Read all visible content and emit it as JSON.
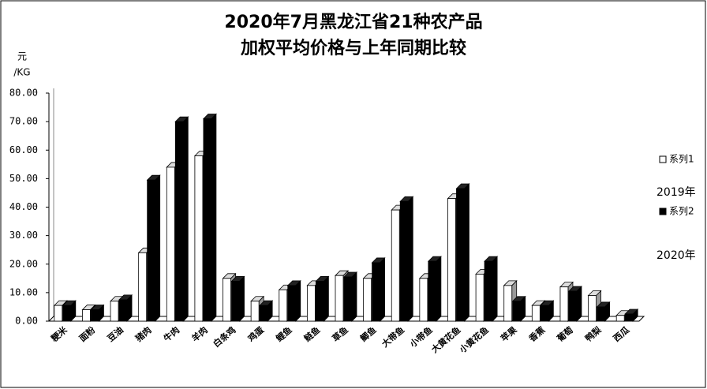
{
  "chart_data": {
    "type": "bar3d",
    "title": "2020年7月黑龙江省21种农产品",
    "subtitle": "加权平均价格与上年同期比较",
    "y_unit": "元",
    "y_unit_sub": "/KG",
    "categories": [
      "粳米",
      "面粉",
      "豆油",
      "猪肉",
      "牛肉",
      "羊肉",
      "白条鸡",
      "鸡蛋",
      "鲤鱼",
      "鲢鱼",
      "草鱼",
      "鲫鱼",
      "大带鱼",
      "小带鱼",
      "大黄花鱼",
      "小黄花鱼",
      "苹果",
      "香蕉",
      "葡萄",
      "鸭梨",
      "西瓜"
    ],
    "series": [
      {
        "name": "系列1",
        "color": "#ffffff",
        "values": [
          5.5,
          4,
          7,
          24,
          54,
          58,
          15,
          7,
          11,
          12.5,
          16,
          15,
          39,
          15,
          43,
          16.5,
          12.5,
          5.5,
          12,
          9,
          2
        ]
      },
      {
        "name": "系列2",
        "color": "#000000",
        "values": [
          5.5,
          4,
          7.5,
          49.5,
          70,
          71,
          14,
          5.5,
          12.5,
          14,
          15.5,
          20.5,
          42,
          21,
          46.5,
          21,
          7,
          5.5,
          10.5,
          5,
          2.5
        ]
      }
    ],
    "annotations": [
      "2019年",
      "2020年"
    ],
    "ylim": [
      0,
      80
    ],
    "yticks": [
      {
        "value": 0,
        "label": "0.00"
      },
      {
        "value": 10,
        "label": "10.00"
      },
      {
        "value": 20,
        "label": "20.00"
      },
      {
        "value": 30,
        "label": "30.00"
      },
      {
        "value": 40,
        "label": "40.00"
      },
      {
        "value": 50,
        "label": "50.00"
      },
      {
        "value": 60,
        "label": "60.00"
      },
      {
        "value": 70,
        "label": "70.00"
      },
      {
        "value": 80,
        "label": "80.00"
      }
    ]
  }
}
